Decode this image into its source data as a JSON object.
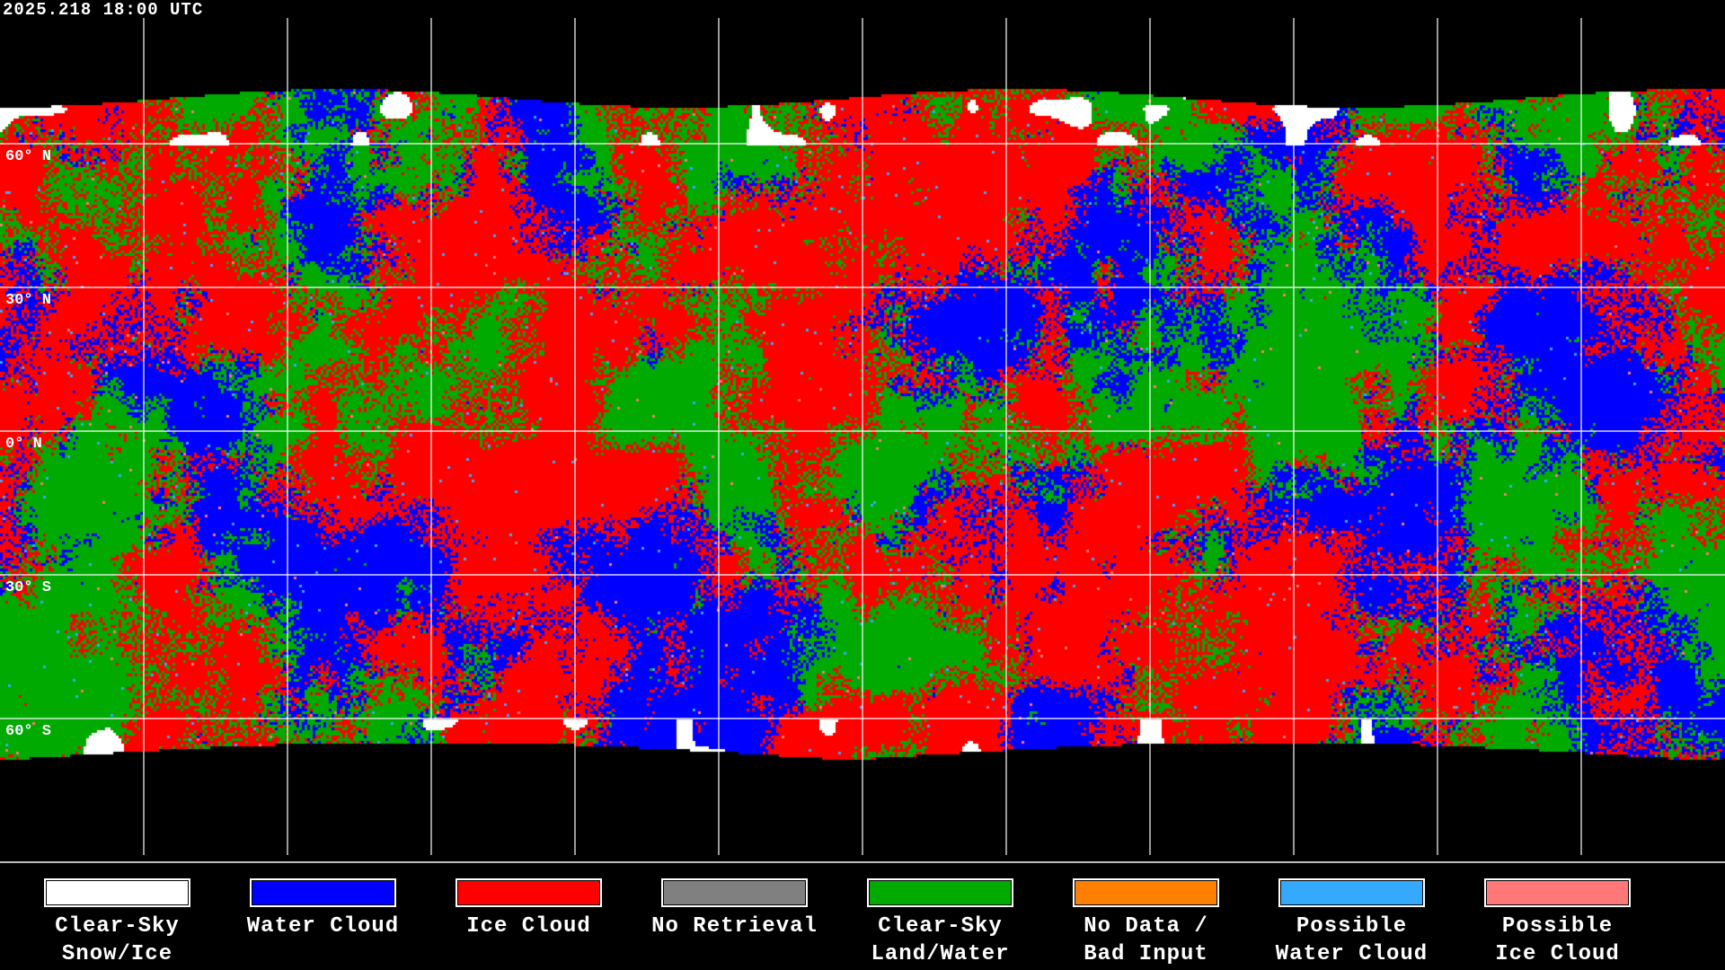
{
  "header": {
    "timestamp": "2025.218 18:00 UTC"
  },
  "map": {
    "projection": "equirectangular",
    "lat_labels": [
      "60° N",
      "30° N",
      "0° N",
      "30° S",
      "60° S"
    ],
    "grid": true,
    "coastlines": true
  },
  "legend": {
    "items": [
      {
        "label": "Clear-Sky\nSnow/Ice",
        "color": "#ffffff"
      },
      {
        "label": "Water Cloud",
        "color": "#0000ff"
      },
      {
        "label": "Ice Cloud",
        "color": "#ff0000"
      },
      {
        "label": "No Retrieval",
        "color": "#808080"
      },
      {
        "label": "Clear-Sky\nLand/Water",
        "color": "#00aa00"
      },
      {
        "label": "No Data /\nBad Input",
        "color": "#ff8000"
      },
      {
        "label": "Possible\nWater Cloud",
        "color": "#33aaff"
      },
      {
        "label": "Possible\nIce Cloud",
        "color": "#ff7777"
      }
    ]
  }
}
